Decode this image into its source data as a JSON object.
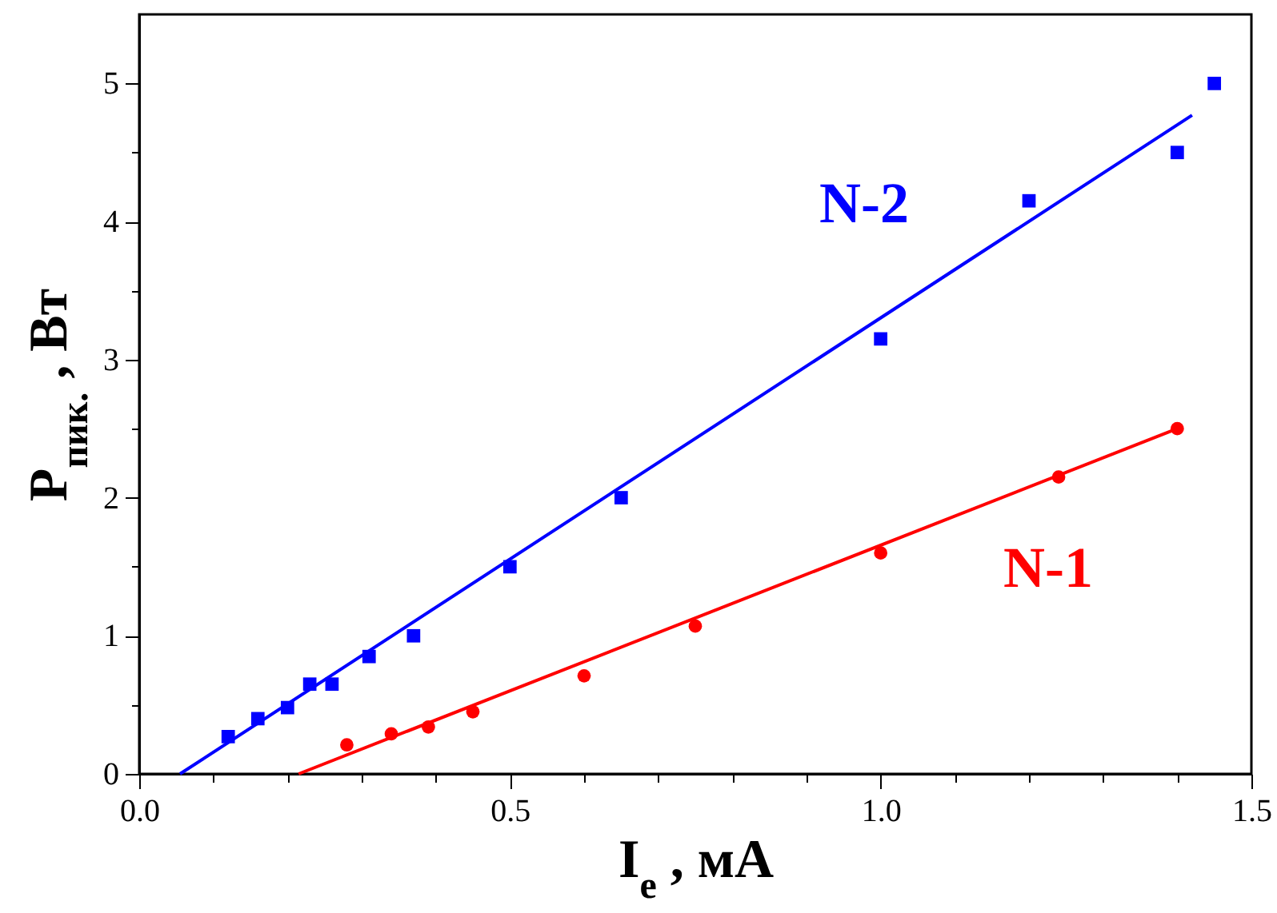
{
  "chart_data": {
    "type": "scatter",
    "xlabel": "I$_{e}$ , мА",
    "ylabel": "P$_{пик.}$ , Вт",
    "xlim": [
      0,
      1.5
    ],
    "ylim": [
      0,
      5.5
    ],
    "xticks": [
      {
        "value": 0,
        "label": "0.0"
      },
      {
        "value": 0.1,
        "label": null
      },
      {
        "value": 0.2,
        "label": null
      },
      {
        "value": 0.3,
        "label": null
      },
      {
        "value": 0.4,
        "label": null
      },
      {
        "value": 0.5,
        "label": "0.5"
      },
      {
        "value": 0.6,
        "label": null
      },
      {
        "value": 0.7,
        "label": null
      },
      {
        "value": 0.8,
        "label": null
      },
      {
        "value": 0.9,
        "label": null
      },
      {
        "value": 1,
        "label": "1.0"
      },
      {
        "value": 1.1,
        "label": null
      },
      {
        "value": 1.2,
        "label": null
      },
      {
        "value": 1.3,
        "label": null
      },
      {
        "value": 1.4,
        "label": null
      },
      {
        "value": 1.5,
        "label": "1.5"
      }
    ],
    "yticks": [
      0,
      {
        "value": 0.5,
        "label": null
      },
      1,
      {
        "value": 1.5,
        "label": null
      },
      2,
      {
        "value": 2.5,
        "label": null
      },
      3,
      {
        "value": 3.5,
        "label": null
      },
      4,
      {
        "value": 4.5,
        "label": null
      },
      5
    ],
    "grid": false,
    "series": [
      {
        "name": "N-2",
        "marker": "square",
        "color": "#0000ff",
        "x": [
          0.12,
          0.16,
          0.2,
          0.23,
          0.26,
          0.31,
          0.37,
          0.5,
          0.65,
          1.0,
          1.2,
          1.4,
          1.45
        ],
        "values": [
          0.27,
          0.4,
          0.48,
          0.65,
          0.65,
          0.85,
          1.0,
          1.5,
          2.0,
          3.15,
          4.15,
          4.5,
          5.0
        ]
      },
      {
        "type": "line",
        "color": "#0000ff",
        "x": [
          0.055,
          1.42
        ],
        "values": [
          0,
          4.77
        ]
      },
      {
        "name": "N-1",
        "marker": "circle",
        "color": "#ff0000",
        "x": [
          0.28,
          0.34,
          0.39,
          0.45,
          0.6,
          0.75,
          1.0,
          1.24,
          1.4
        ],
        "values": [
          0.21,
          0.29,
          0.34,
          0.45,
          0.71,
          1.07,
          1.6,
          2.15,
          2.5
        ]
      },
      {
        "type": "line",
        "color": "#ff0000",
        "x": [
          0.215,
          1.4
        ],
        "values": [
          0,
          2.5
        ]
      }
    ]
  }
}
